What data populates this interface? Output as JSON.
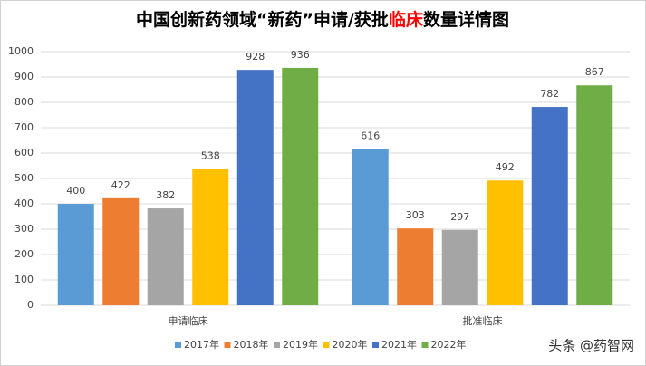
{
  "chart_data": {
    "type": "bar",
    "title": [
      {
        "text": "中国创新药领域“新药”申请/获批",
        "color": "#000000"
      },
      {
        "text": "临床",
        "color": "#ff0000"
      },
      {
        "text": "数量详情图",
        "color": "#000000"
      }
    ],
    "categories": [
      "申请临床",
      "批准临床"
    ],
    "series": [
      {
        "name": "2017年",
        "color": "#5b9bd5",
        "values": [
          400,
          616
        ]
      },
      {
        "name": "2018年",
        "color": "#ed7d31",
        "values": [
          422,
          303
        ]
      },
      {
        "name": "2019年",
        "color": "#a5a5a5",
        "values": [
          382,
          297
        ]
      },
      {
        "name": "2020年",
        "color": "#ffc000",
        "values": [
          538,
          492
        ]
      },
      {
        "name": "2021年",
        "color": "#4472c4",
        "values": [
          928,
          782
        ]
      },
      {
        "name": "2022年",
        "color": "#70ad47",
        "values": [
          936,
          867
        ]
      }
    ],
    "ylim": [
      0,
      1000
    ],
    "yticks": [
      0,
      100,
      200,
      300,
      400,
      500,
      600,
      700,
      800,
      900,
      1000
    ],
    "grid": true,
    "legend": "bottom",
    "watermark": "头条 @药智网"
  }
}
